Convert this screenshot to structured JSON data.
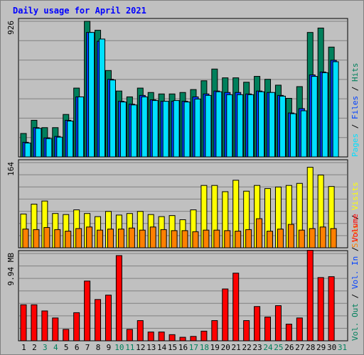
{
  "colors": {
    "background": "#c0c0c0",
    "hits": "#00805c",
    "files": "#0040ff",
    "pages": "#00e0ff",
    "visits": "#ffff00",
    "sites": "#ff8000",
    "volume": "#ff0000",
    "title": "#0000ff",
    "weekend": "#00805c",
    "weekday": "#000000"
  },
  "chart_data": {
    "type": "bar",
    "title": "Daily usage for April 2021",
    "categories": [
      "1",
      "2",
      "3",
      "4",
      "5",
      "6",
      "7",
      "8",
      "9",
      "10",
      "11",
      "12",
      "13",
      "14",
      "15",
      "16",
      "17",
      "18",
      "19",
      "20",
      "21",
      "22",
      "23",
      "24",
      "25",
      "26",
      "27",
      "28",
      "29",
      "30"
    ],
    "weekend_days": [
      "3",
      "4",
      "10",
      "11",
      "17",
      "18",
      "24",
      "25",
      "31"
    ],
    "extra_axis_label": "31",
    "panels": [
      {
        "key": "hits_files_pages",
        "ymax_label": "926",
        "ylim": [
          0,
          926
        ],
        "legend": [
          "Hits",
          "Files",
          "Pages"
        ],
        "series": [
          {
            "name": "Hits",
            "values": [
              160,
              250,
              200,
              200,
              290,
              470,
              926,
              865,
              590,
              450,
              410,
              470,
              440,
              430,
              430,
              440,
              460,
              520,
              600,
              540,
              540,
              510,
              550,
              530,
              490,
              400,
              480,
              850,
              880,
              750
            ]
          },
          {
            "name": "Files",
            "values": [
              100,
              200,
              130,
              140,
              250,
              410,
              850,
              790,
              530,
              380,
              360,
              420,
              390,
              380,
              380,
              380,
              410,
              430,
              450,
              440,
              440,
              430,
              450,
              440,
              420,
              300,
              330,
              560,
              580,
              660
            ]
          },
          {
            "name": "Pages",
            "values": [
              95,
              195,
              125,
              135,
              245,
              410,
              850,
              805,
              525,
              375,
              355,
              410,
              385,
              380,
              385,
              375,
              395,
              420,
              445,
              425,
              425,
              425,
              445,
              440,
              415,
              295,
              315,
              550,
              575,
              650
            ]
          }
        ]
      },
      {
        "key": "visits_sites",
        "ymax_label": "164",
        "ylim": [
          0,
          164
        ],
        "legend": [
          "Visits",
          "Sites"
        ],
        "series": [
          {
            "name": "Visits",
            "values": [
              65,
              84,
              90,
              66,
              64,
              73,
              66,
              60,
              70,
              63,
              66,
              70,
              64,
              60,
              62,
              54,
              73,
              120,
              120,
              108,
              130,
              109,
              120,
              114,
              117,
              120,
              124,
              155,
              140,
              118
            ]
          },
          {
            "name": "Sites",
            "values": [
              36,
              35,
              39,
              35,
              32,
              37,
              40,
              34,
              36,
              36,
              38,
              34,
              40,
              35,
              33,
              33,
              31,
              34,
              34,
              33,
              32,
              35,
              56,
              32,
              36,
              45,
              34,
              37,
              40,
              37
            ]
          }
        ]
      },
      {
        "key": "volume",
        "ymax_label": "9.94 MB",
        "ylim": [
          0,
          9.94
        ],
        "legend": [
          "Volume",
          "Vol. In",
          "Vol. Out"
        ],
        "series": [
          {
            "name": "Volume",
            "values": [
              4.1,
              4.1,
              3.4,
              2.6,
              1.3,
              3.2,
              6.8,
              4.7,
              5.2,
              9.7,
              1.3,
              2.3,
              1.0,
              1.0,
              0.7,
              0.4,
              0.5,
              1.1,
              2.3,
              5.9,
              7.7,
              2.3,
              3.9,
              2.7,
              4.0,
              1.9,
              2.6,
              10.3,
              7.2,
              7.3
            ]
          }
        ]
      }
    ]
  }
}
